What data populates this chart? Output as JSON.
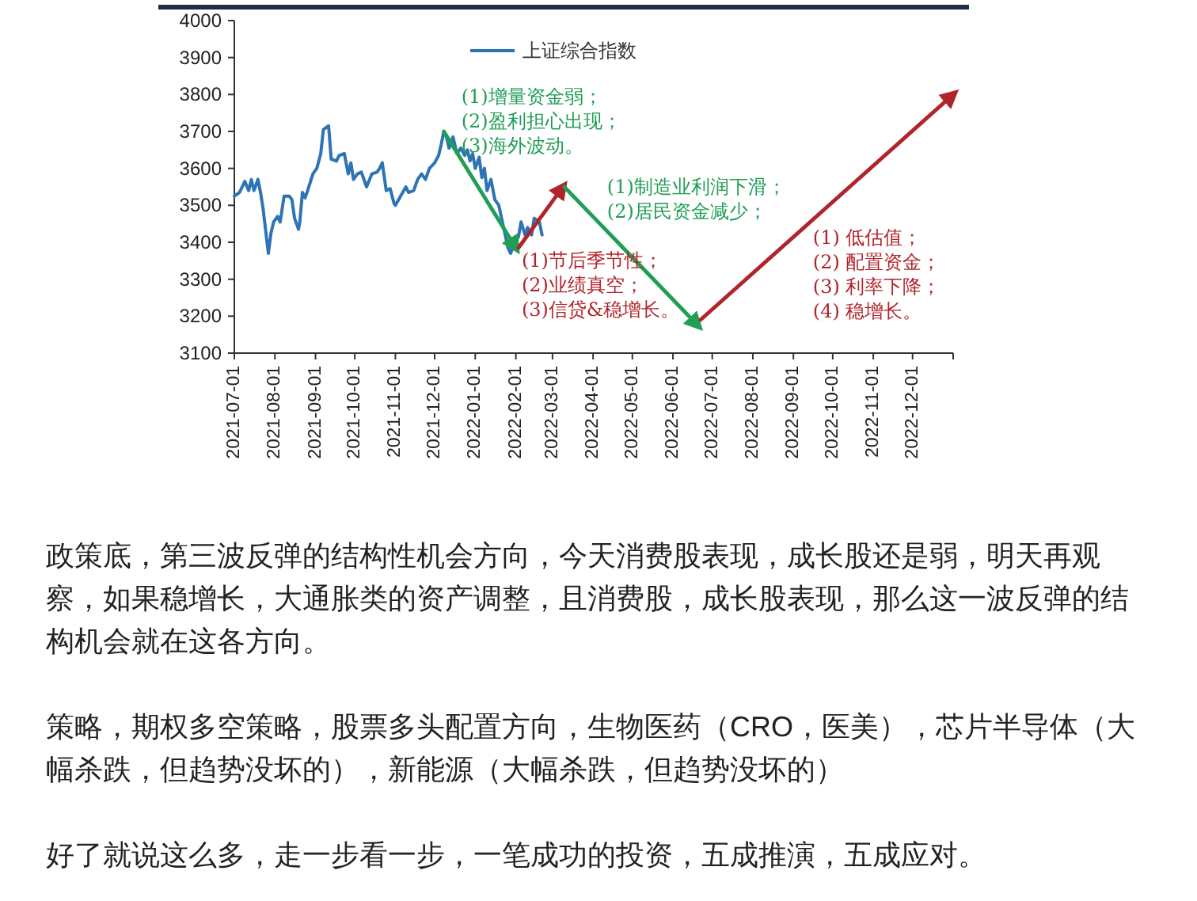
{
  "chart_data": {
    "type": "line",
    "xlim": [
      "2021-07-01",
      "2023-01-01"
    ],
    "xticks": [
      "2021-07-01",
      "2021-08-01",
      "2021-09-01",
      "2021-10-01",
      "2021-11-01",
      "2021-12-01",
      "2022-01-01",
      "2022-02-01",
      "2022-03-01",
      "2022-04-01",
      "2022-05-01",
      "2022-06-01",
      "2022-07-01",
      "2022-08-01",
      "2022-09-01",
      "2022-10-01",
      "2022-11-01",
      "2022-12-01",
      {
        "value": "2023-01-01",
        "label": null
      }
    ],
    "ylim": [
      3100,
      4000
    ],
    "yticks": [
      3100,
      3200,
      3300,
      3400,
      3500,
      3600,
      3700,
      3800,
      3900,
      4000
    ],
    "legend": "top",
    "line_style": "solid",
    "series": [
      {
        "name": "上证综合指数",
        "color": "#2e74b5",
        "x": [
          "2021-07-01",
          "2021-07-05",
          "2021-07-09",
          "2021-07-12",
          "2021-07-14",
          "2021-07-16",
          "2021-07-19",
          "2021-07-21",
          "2021-07-23",
          "2021-07-27",
          "2021-07-29",
          "2021-07-31",
          "2021-08-03",
          "2021-08-05",
          "2021-08-08",
          "2021-08-12",
          "2021-08-14",
          "2021-08-16",
          "2021-08-19",
          "2021-08-20",
          "2021-08-22",
          "2021-08-24",
          "2021-08-26",
          "2021-08-30",
          "2021-09-02",
          "2021-09-05",
          "2021-09-07",
          "2021-09-11",
          "2021-09-13",
          "2021-09-17",
          "2021-09-19",
          "2021-09-23",
          "2021-09-26",
          "2021-09-28",
          "2021-09-30",
          "2021-10-03",
          "2021-10-06",
          "2021-10-10",
          "2021-10-14",
          "2021-10-18",
          "2021-10-20",
          "2021-10-22",
          "2021-10-25",
          "2021-10-28",
          "2021-10-31",
          "2021-11-01",
          "2021-11-05",
          "2021-11-09",
          "2021-11-11",
          "2021-11-15",
          "2021-11-18",
          "2021-11-21",
          "2021-11-24",
          "2021-11-27",
          "2021-12-01",
          "2021-12-04",
          "2021-12-06",
          "2021-12-08",
          "2021-12-10",
          "2021-12-12",
          "2021-12-15",
          "2021-12-18",
          "2021-12-21",
          "2021-12-24",
          "2021-12-26",
          "2021-12-28",
          "2021-12-30",
          "2022-01-01",
          "2022-01-04",
          "2022-01-06",
          "2022-01-08",
          "2022-01-10",
          "2022-01-13",
          "2022-01-16",
          "2022-01-19",
          "2022-01-22",
          "2022-01-26",
          "2022-01-28",
          "2022-01-30",
          "2022-02-03",
          "2022-02-05",
          "2022-02-08",
          "2022-02-10",
          "2022-02-13",
          "2022-02-15",
          "2022-02-19",
          "2022-02-21"
        ],
        "values": [
          3525,
          3535,
          3565,
          3540,
          3570,
          3540,
          3570,
          3535,
          3490,
          3370,
          3425,
          3455,
          3470,
          3455,
          3525,
          3525,
          3515,
          3465,
          3435,
          3455,
          3535,
          3520,
          3540,
          3585,
          3600,
          3640,
          3705,
          3715,
          3625,
          3620,
          3635,
          3640,
          3585,
          3615,
          3570,
          3585,
          3590,
          3550,
          3585,
          3590,
          3600,
          3615,
          3540,
          3545,
          3505,
          3500,
          3525,
          3550,
          3535,
          3540,
          3570,
          3585,
          3570,
          3600,
          3615,
          3635,
          3665,
          3700,
          3685,
          3655,
          3685,
          3640,
          3655,
          3635,
          3650,
          3620,
          3640,
          3600,
          3630,
          3575,
          3600,
          3540,
          3570,
          3515,
          3500,
          3450,
          3385,
          3370,
          3390,
          3415,
          3455,
          3420,
          3440,
          3420,
          3465,
          3455,
          3420
        ]
      },
      {
        "color": "#1f9e55",
        "x": [
          "2021-12-08",
          "2022-02-01"
        ],
        "values": [
          3700,
          3385
        ]
      },
      {
        "color": "#b0252b",
        "x": [
          "2022-02-03",
          "2022-03-09"
        ],
        "values": [
          3385,
          3550
        ]
      },
      {
        "color": "#1f9e55",
        "x": [
          "2022-03-10",
          "2022-06-20"
        ],
        "values": [
          3550,
          3175
        ]
      },
      {
        "color": "#b0252b",
        "x": [
          "2022-06-22",
          "2023-01-01"
        ],
        "values": [
          3190,
          3800
        ]
      }
    ],
    "annotations": [
      "(1)增量资金弱；\n(2)盈利担心出现；\n(3)海外波动。",
      "(1)节后季节性；\n(2)业绩真空；\n(3)信贷&稳增长。",
      "(1)制造业利润下滑；\n(2)居民资金减少；",
      "(1) 低估值；\n(2) 配置资金；\n(3) 利率下降；\n(4) 稳增长。",
      "政策底，第三波反弹的结构性机会方向，今天消费股表现，成长股还是弱，明天再观察，如果稳增长，大通胀类的资产调整，且消费股，成长股表现，那么这一波反弹的结构机会就在这各方向。",
      "策略，期权多空策略，股票多头配置方向，生物医药（CRO，医美），芯片半导体（大幅杀跌，但趋势没坏的），新能源（大幅杀跌，但趋势没坏的）",
      "好了就说这么多，走一步看一步，一笔成功的投资，五成推演，五成应对。"
    ]
  }
}
